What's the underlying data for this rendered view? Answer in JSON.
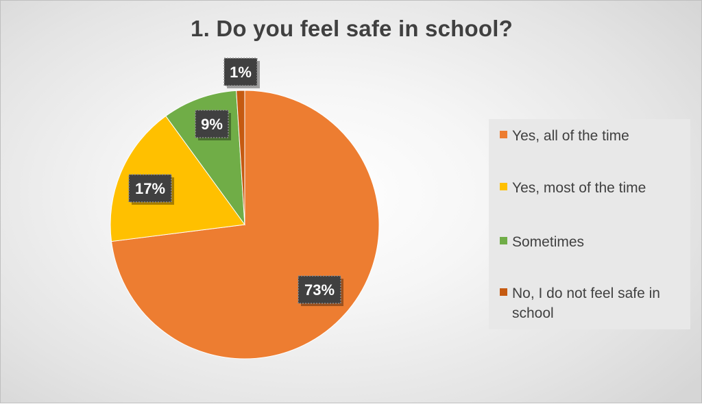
{
  "chart_data": {
    "type": "pie",
    "title": "1. Do you feel safe in school?",
    "categories": [
      "Yes, all of the time",
      "Yes, most of the time",
      "Sometimes",
      "No, I do not feel safe in school"
    ],
    "values": [
      73,
      17,
      9,
      1
    ],
    "data_labels": [
      "73%",
      "17%",
      "9%",
      "1%"
    ],
    "colors": [
      "#ed7d31",
      "#ffc000",
      "#70ad47",
      "#c55a11"
    ],
    "start_angle_deg": 0,
    "direction": "clockwise",
    "legend_position": "right"
  }
}
